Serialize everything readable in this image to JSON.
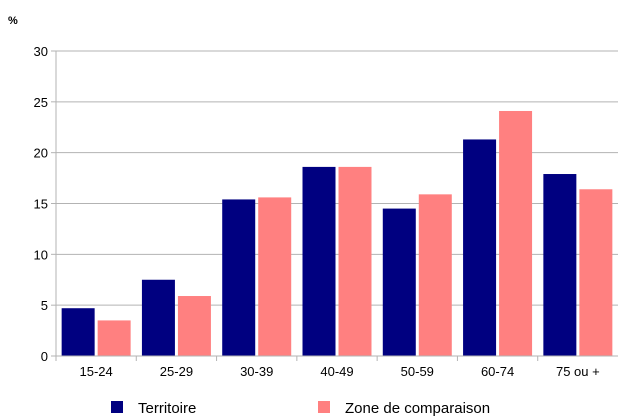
{
  "chart_data": {
    "type": "bar",
    "ylabel": "%",
    "xlabel": "",
    "title": "",
    "categories": [
      "15-24",
      "25-29",
      "30-39",
      "40-49",
      "50-59",
      "60-74",
      "75 ou +"
    ],
    "series": [
      {
        "name": "Territoire",
        "color": "#000080",
        "values": [
          4.7,
          7.5,
          15.4,
          18.6,
          14.5,
          21.3,
          17.9
        ]
      },
      {
        "name": "Zone de comparaison",
        "color": "#ff8080",
        "values": [
          3.5,
          5.9,
          15.6,
          18.6,
          15.9,
          24.1,
          16.4
        ]
      }
    ],
    "ylim": [
      0,
      30
    ],
    "yticks": [
      0,
      5,
      10,
      15,
      20,
      25,
      30
    ],
    "grid": true,
    "legend_position": "bottom"
  }
}
